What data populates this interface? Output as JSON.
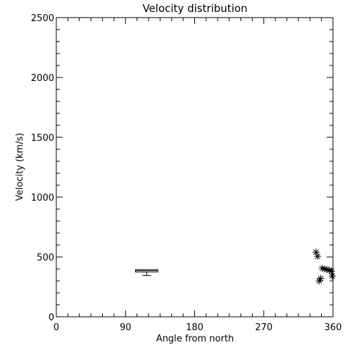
{
  "chart_data": {
    "type": "scatter",
    "title": "Velocity distribution",
    "xlabel": "Angle from north",
    "ylabel": "Velocity (km/s)",
    "xlim": [
      0,
      360
    ],
    "ylim": [
      0,
      2500
    ],
    "xticks": [
      0,
      90,
      180,
      270,
      360
    ],
    "yticks": [
      0,
      500,
      1000,
      1500,
      2000,
      2500
    ],
    "grid": false,
    "series": [
      {
        "marker": "asterisk",
        "points": [
          {
            "x": 338,
            "y": 540
          },
          {
            "x": 340,
            "y": 505
          },
          {
            "x": 342,
            "y": 300
          },
          {
            "x": 344,
            "y": 320
          },
          {
            "x": 346,
            "y": 405
          },
          {
            "x": 349,
            "y": 400
          },
          {
            "x": 352,
            "y": 395
          },
          {
            "x": 355,
            "y": 390
          },
          {
            "x": 358,
            "y": 380
          },
          {
            "x": 361,
            "y": 340
          }
        ]
      }
    ],
    "box": {
      "x_min": 103,
      "x_max": 132,
      "top": 395,
      "bottom": 375,
      "median": 385,
      "whisker_low": 345
    }
  }
}
